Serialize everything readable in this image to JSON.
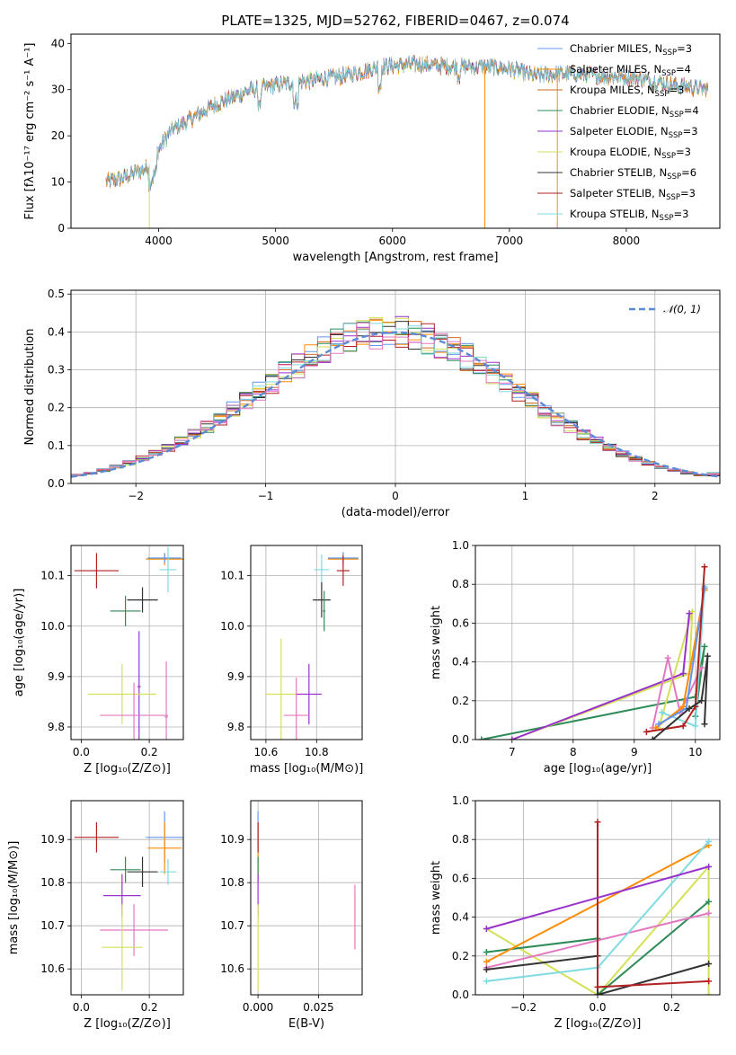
{
  "chart_data": [
    {
      "id": "spectrum",
      "type": "line",
      "title": "PLATE=1325, MJD=52762, FIBERID=0467, z=0.074",
      "xlabel": "wavelength [Angstrom, rest frame]",
      "ylabel": "Flux [fλ10⁻¹⁷ erg cm⁻² s⁻¹ A⁻¹]",
      "xlim": [
        3250,
        8800
      ],
      "ylim": [
        0,
        42
      ],
      "xticks": [
        4000,
        5000,
        6000,
        7000,
        8000
      ],
      "yticks": [
        0,
        10,
        20,
        30,
        40
      ],
      "grid": false,
      "legend_position": "top-right",
      "continuum_x": [
        3550,
        3700,
        3900,
        4100,
        4300,
        4500,
        4800,
        5000,
        5300,
        5600,
        5900,
        6200,
        6500,
        6800,
        7000,
        7200,
        7500,
        7800,
        8100,
        8400,
        8700
      ],
      "continuum_y": [
        10,
        11,
        13,
        21,
        24,
        27,
        30,
        31,
        32,
        33,
        35,
        35.5,
        35,
        35,
        34.5,
        33,
        33.5,
        33,
        32.5,
        31,
        30
      ],
      "glitches": [
        {
          "x": 3920,
          "y_low": 0
        },
        {
          "x": 6790,
          "y_low": 0
        },
        {
          "x": 7410,
          "y_low": 0
        }
      ],
      "series": [
        {
          "name": "Chabrier MILES, N",
          "sub": "SSP",
          "suffix": "=3",
          "color": "#6495ed"
        },
        {
          "name": "Salpeter MILES, N",
          "sub": "SSP",
          "suffix": "=4",
          "color": "#ff8c00"
        },
        {
          "name": "Kroupa MILES, N",
          "sub": "SSP",
          "suffix": "=3",
          "color": "#d2691e"
        },
        {
          "name": "Chabrier ELODIE, N",
          "sub": "SSP",
          "suffix": "=4",
          "color": "#2e8b57"
        },
        {
          "name": "Salpeter ELODIE, N",
          "sub": "SSP",
          "suffix": "=3",
          "color": "#9932cc"
        },
        {
          "name": "Kroupa ELODIE, N",
          "sub": "SSP",
          "suffix": "=3",
          "color": "#d4e157"
        },
        {
          "name": "Chabrier STELIB, N",
          "sub": "SSP",
          "suffix": "=6",
          "color": "#333333"
        },
        {
          "name": "Salpeter STELIB, N",
          "sub": "SSP",
          "suffix": "=3",
          "color": "#b22222"
        },
        {
          "name": "Kroupa STELIB, N",
          "sub": "SSP",
          "suffix": "=3",
          "color": "#7fdbe0"
        }
      ]
    },
    {
      "id": "residuals",
      "type": "histogram",
      "xlabel": "(data-model)/error",
      "ylabel": "Normed distribution",
      "xlim": [
        -2.5,
        2.5
      ],
      "ylim": [
        0,
        0.51
      ],
      "xticks": [
        -2,
        -1,
        0,
        1,
        2
      ],
      "yticks": [
        0.0,
        0.1,
        0.2,
        0.3,
        0.4,
        0.5
      ],
      "grid": true,
      "legend_position": "top-right",
      "reference_curve": {
        "name": "𝒩(0, 1)",
        "mean": 0,
        "sigma": 1,
        "color": "#5b8bd6"
      },
      "bin_width": 0.1,
      "bin_start": -2.5,
      "colors": [
        "#6495ed",
        "#ff8c00",
        "#d2691e",
        "#2e8b57",
        "#9932cc",
        "#d4e157",
        "#333333",
        "#b22222",
        "#7fdbe0",
        "#e377c2"
      ]
    },
    {
      "id": "age_vs_Z",
      "type": "errorbar",
      "xlabel": "Z [log₁₀(Z/Z⊙)]",
      "ylabel": "age  [log₁₀(age/yr)]",
      "xlim": [
        -0.03,
        0.3
      ],
      "ylim": [
        9.775,
        10.16
      ],
      "xticks": [
        0.0,
        0.2
      ],
      "yticks": [
        9.8,
        9.9,
        10.0,
        10.1
      ],
      "points": [
        {
          "x": 0.045,
          "y": 10.11,
          "xerr": 0.065,
          "yerr": 0.035,
          "color": "#b22222"
        },
        {
          "x": 0.245,
          "y": 10.133,
          "xerr": 0.055,
          "yerr": 0.012,
          "color": "#ff8c00"
        },
        {
          "x": 0.245,
          "y": 10.135,
          "xerr": 0.05,
          "yerr": 0.01,
          "color": "#6495ed"
        },
        {
          "x": 0.255,
          "y": 10.112,
          "xerr": 0.025,
          "yerr": 0.045,
          "color": "#7fdbe0"
        },
        {
          "x": 0.18,
          "y": 10.052,
          "xerr": 0.045,
          "yerr": 0.025,
          "color": "#333333"
        },
        {
          "x": 0.13,
          "y": 10.03,
          "xerr": 0.045,
          "yerr": 0.03,
          "color": "#2e8b57"
        },
        {
          "x": 0.17,
          "y": 9.88,
          "xerr": 0.005,
          "yerr": 0.11,
          "color": "#9932cc"
        },
        {
          "x": 0.12,
          "y": 9.865,
          "xerr": 0.1,
          "yerr": 0.06,
          "color": "#d4e157"
        },
        {
          "x": 0.155,
          "y": 9.823,
          "xerr": 0.1,
          "yerr": 0.065,
          "color": "#e377c2"
        },
        {
          "x": 0.25,
          "y": 9.82,
          "xerr": 0.005,
          "yerr": 0.11,
          "color": "#e377c2"
        }
      ]
    },
    {
      "id": "age_vs_mass",
      "type": "errorbar",
      "xlabel": "mass [log₁₀(M/M⊙)]",
      "ylabel": "",
      "xlim": [
        10.54,
        10.98
      ],
      "ylim": [
        9.775,
        10.16
      ],
      "xticks": [
        10.6,
        10.8
      ],
      "yticks": [
        9.8,
        9.9,
        10.0,
        10.1
      ],
      "points": [
        {
          "x": 10.905,
          "y": 10.133,
          "xerr": 0.06,
          "yerr": 0.012,
          "color": "#ff8c00"
        },
        {
          "x": 10.905,
          "y": 10.135,
          "xerr": 0.06,
          "yerr": 0.012,
          "color": "#6495ed"
        },
        {
          "x": 10.905,
          "y": 10.11,
          "xerr": 0.025,
          "yerr": 0.03,
          "color": "#b22222"
        },
        {
          "x": 10.82,
          "y": 10.112,
          "xerr": 0.03,
          "yerr": 0.03,
          "color": "#7fdbe0"
        },
        {
          "x": 10.82,
          "y": 10.052,
          "xerr": 0.035,
          "yerr": 0.035,
          "color": "#333333"
        },
        {
          "x": 10.83,
          "y": 10.03,
          "xerr": 0.005,
          "yerr": 0.04,
          "color": "#2e8b57"
        },
        {
          "x": 10.77,
          "y": 9.865,
          "xerr": 0.05,
          "yerr": 0.06,
          "color": "#9932cc"
        },
        {
          "x": 10.66,
          "y": 9.865,
          "xerr": 0.06,
          "yerr": 0.11,
          "color": "#d4e157"
        },
        {
          "x": 10.72,
          "y": 9.823,
          "xerr": 0.05,
          "yerr": 0.075,
          "color": "#e377c2"
        }
      ]
    },
    {
      "id": "weight_vs_age",
      "type": "line",
      "xlabel": "age  [log₁₀(age/yr)]",
      "ylabel": "mass weight",
      "xlim": [
        6.4,
        10.4
      ],
      "ylim": [
        0,
        1
      ],
      "xticks": [
        7,
        8,
        9,
        10
      ],
      "yticks": [
        0.0,
        0.2,
        0.4,
        0.6,
        0.8,
        1.0
      ],
      "grid": true,
      "series": [
        {
          "color": "#2e8b57",
          "x": [
            6.5,
            10.0,
            10.15,
            10.0
          ],
          "y": [
            0.0,
            0.22,
            0.48,
            0.12
          ]
        },
        {
          "color": "#d4e157",
          "x": [
            7.0,
            9.9,
            9.95,
            9.4
          ],
          "y": [
            0.0,
            0.34,
            0.66,
            0.06
          ]
        },
        {
          "color": "#9932cc",
          "x": [
            7.0,
            9.8,
            9.9
          ],
          "y": [
            0.0,
            0.34,
            0.65
          ]
        },
        {
          "color": "#e377c2",
          "x": [
            9.3,
            9.55,
            9.75,
            10.1
          ],
          "y": [
            0.06,
            0.42,
            0.14,
            0.37
          ]
        },
        {
          "color": "#7fdbe0",
          "x": [
            9.45,
            10.0,
            10.15
          ],
          "y": [
            0.14,
            0.07,
            0.79
          ]
        },
        {
          "color": "#ff8c00",
          "x": [
            9.35,
            9.8,
            10.15
          ],
          "y": [
            0.06,
            0.17,
            0.77
          ]
        },
        {
          "color": "#6495ed",
          "x": [
            9.4,
            9.85,
            10.15
          ],
          "y": [
            0.08,
            0.16,
            0.78
          ]
        },
        {
          "color": "#b22222",
          "x": [
            9.2,
            9.8,
            10.0,
            10.15
          ],
          "y": [
            0.04,
            0.07,
            0.17,
            0.89
          ]
        },
        {
          "color": "#333333",
          "x": [
            9.3,
            9.9,
            10.1,
            10.2,
            10.15
          ],
          "y": [
            0.0,
            0.16,
            0.2,
            0.43,
            0.08
          ]
        }
      ]
    },
    {
      "id": "mass_vs_Z",
      "type": "errorbar",
      "xlabel": "Z [log₁₀(Z/Z⊙)]",
      "ylabel": "mass [log₁₀(M/M⊙)]",
      "xlim": [
        -0.03,
        0.3
      ],
      "ylim": [
        10.54,
        10.99
      ],
      "xticks": [
        0.0,
        0.2
      ],
      "yticks": [
        10.6,
        10.7,
        10.8,
        10.9
      ],
      "points": [
        {
          "x": 0.045,
          "y": 10.905,
          "xerr": 0.065,
          "yerr": 0.035,
          "color": "#b22222"
        },
        {
          "x": 0.245,
          "y": 10.905,
          "xerr": 0.055,
          "yerr": 0.06,
          "color": "#6495ed"
        },
        {
          "x": 0.245,
          "y": 10.88,
          "xerr": 0.05,
          "yerr": 0.06,
          "color": "#ff8c00"
        },
        {
          "x": 0.255,
          "y": 10.825,
          "xerr": 0.025,
          "yerr": 0.03,
          "color": "#7fdbe0"
        },
        {
          "x": 0.18,
          "y": 10.825,
          "xerr": 0.045,
          "yerr": 0.035,
          "color": "#333333"
        },
        {
          "x": 0.13,
          "y": 10.83,
          "xerr": 0.045,
          "yerr": 0.03,
          "color": "#2e8b57"
        },
        {
          "x": 0.12,
          "y": 10.77,
          "xerr": 0.055,
          "yerr": 0.05,
          "color": "#9932cc"
        },
        {
          "x": 0.155,
          "y": 10.69,
          "xerr": 0.1,
          "yerr": 0.06,
          "color": "#e377c2"
        },
        {
          "x": 0.12,
          "y": 10.65,
          "xerr": 0.06,
          "yerr": 0.1,
          "color": "#d4e157"
        }
      ]
    },
    {
      "id": "mass_vs_EBV",
      "type": "errorbar",
      "xlabel": "E(B-V)",
      "ylabel": "",
      "xlim": [
        -0.003,
        0.043
      ],
      "ylim": [
        10.54,
        10.99
      ],
      "xticks": [
        0.0,
        0.025
      ],
      "xticklabels": [
        "0.000",
        "0.025"
      ],
      "yticks": [
        10.6,
        10.7,
        10.8,
        10.9
      ],
      "points": [
        {
          "x": 0.0,
          "y": 10.905,
          "xerr": 0.0,
          "yerr": 0.06,
          "color": "#6495ed"
        },
        {
          "x": 0.0,
          "y": 10.88,
          "xerr": 0.0,
          "yerr": 0.06,
          "color": "#ff8c00"
        },
        {
          "x": 0.0,
          "y": 10.905,
          "xerr": 0.0,
          "yerr": 0.035,
          "color": "#b22222"
        },
        {
          "x": 0.0,
          "y": 10.83,
          "xerr": 0.0,
          "yerr": 0.03,
          "color": "#2e8b57"
        },
        {
          "x": 0.0,
          "y": 10.77,
          "xerr": 0.0,
          "yerr": 0.05,
          "color": "#9932cc"
        },
        {
          "x": 0.0,
          "y": 10.65,
          "xerr": 0.0,
          "yerr": 0.1,
          "color": "#d4e157"
        },
        {
          "x": 0.04,
          "y": 10.72,
          "xerr": 0.0,
          "yerr": 0.075,
          "color": "#e377c2"
        }
      ]
    },
    {
      "id": "weight_vs_Z",
      "type": "line",
      "xlabel": "Z [log₁₀(Z/Z⊙)]",
      "ylabel": "mass weight",
      "xlim": [
        -0.33,
        0.33
      ],
      "ylim": [
        0,
        1
      ],
      "xticks": [
        -0.2,
        0.0,
        0.2
      ],
      "yticks": [
        0.0,
        0.2,
        0.4,
        0.6,
        0.8,
        1.0
      ],
      "grid": true,
      "series": [
        {
          "color": "#d4e157",
          "x": [
            -0.3,
            0.0,
            0.3,
            0.3
          ],
          "y": [
            0.34,
            0.0,
            0.66,
            0.0
          ]
        },
        {
          "color": "#2e8b57",
          "x": [
            -0.3,
            0.0,
            0.0,
            0.3
          ],
          "y": [
            0.22,
            0.29,
            0.0,
            0.48
          ]
        },
        {
          "color": "#ff8c00",
          "x": [
            -0.3,
            0.3
          ],
          "y": [
            0.17,
            0.77
          ]
        },
        {
          "color": "#e377c2",
          "x": [
            -0.3,
            0.3
          ],
          "y": [
            0.14,
            0.42
          ]
        },
        {
          "color": "#7fdbe0",
          "x": [
            -0.3,
            0.0,
            0.3
          ],
          "y": [
            0.07,
            0.14,
            0.79
          ]
        },
        {
          "color": "#333333",
          "x": [
            -0.3,
            0.0,
            0.0,
            0.3
          ],
          "y": [
            0.13,
            0.2,
            0.0,
            0.16
          ]
        },
        {
          "color": "#b22222",
          "x": [
            0.0,
            0.0,
            0.3
          ],
          "y": [
            0.89,
            0.04,
            0.07
          ]
        },
        {
          "color": "#9932cc",
          "x": [
            -0.3,
            0.3
          ],
          "y": [
            0.34,
            0.66
          ]
        }
      ]
    }
  ]
}
